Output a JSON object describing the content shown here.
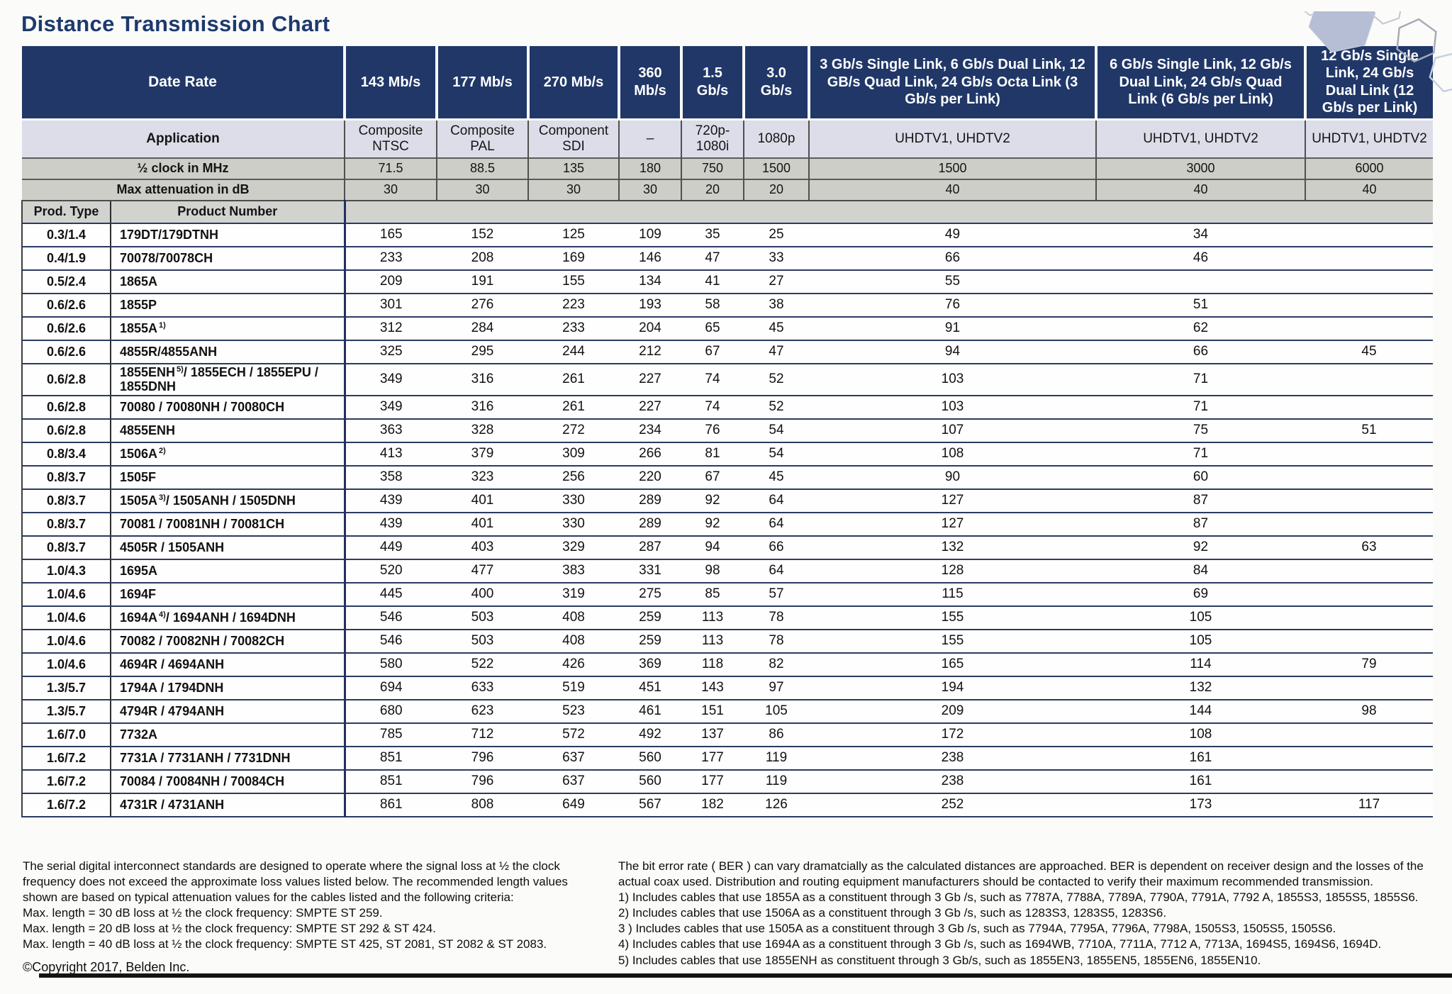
{
  "title": "Distance Transmission Chart",
  "colors": {
    "header_navy": "#203768",
    "application_row_bg": "#dcdde8",
    "gray_row_bg": "#cdcec8",
    "prod_header_row_bg": "#d2d3cf",
    "row_divider_navy": "#2b3a63",
    "title_text": "#1d3a6e"
  },
  "table": {
    "header": {
      "date_rate_label": "Date Rate",
      "application_label": "Application",
      "half_clock_label": "½ clock in MHz",
      "max_attenuation_label": "Max attenuation in dB",
      "prod_type_label": "Prod. Type",
      "product_number_label": "Product Number",
      "rate_columns": [
        "143 Mb/s",
        "177 Mb/s",
        "270 Mb/s",
        "360 Mb/s",
        "1.5 Gb/s",
        "3.0 Gb/s",
        "3 Gb/s Single Link, 6 Gb/s Dual Link, 12 GB/s Quad Link, 24 Gb/s Octa Link (3 Gb/s per Link)",
        "6 Gb/s Single Link, 12 Gb/s Dual Link, 24 Gb/s Quad Link (6 Gb/s per Link)",
        "12 Gb/s Single Link, 24 Gb/s Dual Link (12 Gb/s per Link)"
      ],
      "applications": [
        "Composite NTSC",
        "Composite PAL",
        "Component SDI",
        "–",
        "720p-1080i",
        "1080p",
        "UHDTV1, UHDTV2",
        "UHDTV1, UHDTV2",
        "UHDTV1, UHDTV2"
      ],
      "half_clock_values": [
        "71.5",
        "88.5",
        "135",
        "180",
        "750",
        "1500",
        "1500",
        "3000",
        "6000"
      ],
      "max_attenuation_values": [
        "30",
        "30",
        "30",
        "30",
        "20",
        "20",
        "40",
        "40",
        "40"
      ]
    },
    "rows": [
      {
        "prod_type": "0.3/1.4",
        "product": "179DT/179DTNH",
        "sup": "",
        "product_after": "",
        "values": [
          "165",
          "152",
          "125",
          "109",
          "35",
          "25",
          "49",
          "34",
          ""
        ]
      },
      {
        "prod_type": "0.4/1.9",
        "product": "70078/70078CH",
        "sup": "",
        "product_after": "",
        "values": [
          "233",
          "208",
          "169",
          "146",
          "47",
          "33",
          "66",
          "46",
          ""
        ]
      },
      {
        "prod_type": "0.5/2.4",
        "product": "1865A",
        "sup": "",
        "product_after": "",
        "values": [
          "209",
          "191",
          "155",
          "134",
          "41",
          "27",
          "55",
          "",
          ""
        ]
      },
      {
        "prod_type": "0.6/2.6",
        "product": "1855P",
        "sup": "",
        "product_after": "",
        "values": [
          "301",
          "276",
          "223",
          "193",
          "58",
          "38",
          "76",
          "51",
          ""
        ]
      },
      {
        "prod_type": "0.6/2.6",
        "product": "1855A",
        "sup": "1)",
        "product_after": "",
        "values": [
          "312",
          "284",
          "233",
          "204",
          "65",
          "45",
          "91",
          "62",
          ""
        ]
      },
      {
        "prod_type": "0.6/2.6",
        "product": "4855R/4855ANH",
        "sup": "",
        "product_after": "",
        "values": [
          "325",
          "295",
          "244",
          "212",
          "67",
          "47",
          "94",
          "66",
          "45"
        ]
      },
      {
        "prod_type": "0.6/2.8",
        "product": "1855ENH",
        "sup": "5)",
        "product_after": "/ 1855ECH / 1855EPU / 1855DNH",
        "values": [
          "349",
          "316",
          "261",
          "227",
          "74",
          "52",
          "103",
          "71",
          ""
        ]
      },
      {
        "prod_type": "0.6/2.8",
        "product": "70080 / 70080NH / 70080CH",
        "sup": "",
        "product_after": "",
        "values": [
          "349",
          "316",
          "261",
          "227",
          "74",
          "52",
          "103",
          "71",
          ""
        ]
      },
      {
        "prod_type": "0.6/2.8",
        "product": "4855ENH",
        "sup": "",
        "product_after": "",
        "values": [
          "363",
          "328",
          "272",
          "234",
          "76",
          "54",
          "107",
          "75",
          "51"
        ]
      },
      {
        "prod_type": "0.8/3.4",
        "product": "1506A",
        "sup": "2)",
        "product_after": "",
        "values": [
          "413",
          "379",
          "309",
          "266",
          "81",
          "54",
          "108",
          "71",
          ""
        ]
      },
      {
        "prod_type": "0.8/3.7",
        "product": "1505F",
        "sup": "",
        "product_after": "",
        "values": [
          "358",
          "323",
          "256",
          "220",
          "67",
          "45",
          "90",
          "60",
          ""
        ]
      },
      {
        "prod_type": "0.8/3.7",
        "product": "1505A",
        "sup": "3)",
        "product_after": "/ 1505ANH / 1505DNH",
        "values": [
          "439",
          "401",
          "330",
          "289",
          "92",
          "64",
          "127",
          "87",
          ""
        ]
      },
      {
        "prod_type": "0.8/3.7",
        "product": "70081 / 70081NH / 70081CH",
        "sup": "",
        "product_after": "",
        "values": [
          "439",
          "401",
          "330",
          "289",
          "92",
          "64",
          "127",
          "87",
          ""
        ]
      },
      {
        "prod_type": "0.8/3.7",
        "product": "4505R / 1505ANH",
        "sup": "",
        "product_after": "",
        "values": [
          "449",
          "403",
          "329",
          "287",
          "94",
          "66",
          "132",
          "92",
          "63"
        ]
      },
      {
        "prod_type": "1.0/4.3",
        "product": "1695A",
        "sup": "",
        "product_after": "",
        "values": [
          "520",
          "477",
          "383",
          "331",
          "98",
          "64",
          "128",
          "84",
          ""
        ]
      },
      {
        "prod_type": "1.0/4.6",
        "product": "1694F",
        "sup": "",
        "product_after": "",
        "values": [
          "445",
          "400",
          "319",
          "275",
          "85",
          "57",
          "115",
          "69",
          ""
        ]
      },
      {
        "prod_type": "1.0/4.6",
        "product": "1694A",
        "sup": "4)",
        "product_after": "/ 1694ANH / 1694DNH",
        "values": [
          "546",
          "503",
          "408",
          "259",
          "113",
          "78",
          "155",
          "105",
          ""
        ]
      },
      {
        "prod_type": "1.0/4.6",
        "product": "70082 / 70082NH / 70082CH",
        "sup": "",
        "product_after": "",
        "values": [
          "546",
          "503",
          "408",
          "259",
          "113",
          "78",
          "155",
          "105",
          ""
        ]
      },
      {
        "prod_type": "1.0/4.6",
        "product": "4694R / 4694ANH",
        "sup": "",
        "product_after": "",
        "values": [
          "580",
          "522",
          "426",
          "369",
          "118",
          "82",
          "165",
          "114",
          "79"
        ]
      },
      {
        "prod_type": "1.3/5.7",
        "product": "1794A / 1794DNH",
        "sup": "",
        "product_after": "",
        "values": [
          "694",
          "633",
          "519",
          "451",
          "143",
          "97",
          "194",
          "132",
          ""
        ]
      },
      {
        "prod_type": "1.3/5.7",
        "product": "4794R / 4794ANH",
        "sup": "",
        "product_after": "",
        "values": [
          "680",
          "623",
          "523",
          "461",
          "151",
          "105",
          "209",
          "144",
          "98"
        ]
      },
      {
        "prod_type": "1.6/7.0",
        "product": "7732A",
        "sup": "",
        "product_after": "",
        "values": [
          "785",
          "712",
          "572",
          "492",
          "137",
          "86",
          "172",
          "108",
          ""
        ]
      },
      {
        "prod_type": "1.6/7.2",
        "product": "7731A / 7731ANH / 7731DNH",
        "sup": "",
        "product_after": "",
        "values": [
          "851",
          "796",
          "637",
          "560",
          "177",
          "119",
          "238",
          "161",
          ""
        ]
      },
      {
        "prod_type": "1.6/7.2",
        "product": "70084 / 70084NH / 70084CH",
        "sup": "",
        "product_after": "",
        "values": [
          "851",
          "796",
          "637",
          "560",
          "177",
          "119",
          "238",
          "161",
          ""
        ]
      },
      {
        "prod_type": "1.6/7.2",
        "product": "4731R / 4731ANH",
        "sup": "",
        "product_after": "",
        "values": [
          "861",
          "808",
          "649",
          "567",
          "182",
          "126",
          "252",
          "173",
          "117"
        ]
      }
    ]
  },
  "footer": {
    "left": {
      "paragraph": "The serial digital interconnect standards are designed to operate where the signal loss at ½ the clock frequency does not exceed the approximate loss values listed below. The recommended length values shown are based on typical attenuation values for the cables listed and the following criteria:",
      "criteria": [
        "Max. length = 30 dB loss at ½ the clock frequency: SMPTE ST 259.",
        "Max. length = 20 dB loss at ½ the clock frequency: SMPTE ST 292 & ST 424.",
        "Max. length = 40 dB loss at ½ the clock frequency: SMPTE ST 425, ST 2081, ST 2082 & ST 2083."
      ],
      "copyright": "©Copyright 2017, Belden Inc."
    },
    "right": {
      "paragraph": "The bit error rate ( BER ) can vary dramatcially as the calculated distances are approached. BER is dependent on receiver design and the losses of the actual coax used. Distribution and routing equipment manufacturers should be contacted to verify their maximum recommended transmission.",
      "notes": [
        "1) Includes cables that use 1855A as a constituent through 3 Gb /s, such as 7787A, 7788A, 7789A, 7790A, 7791A, 7792 A, 1855S3, 1855S5, 1855S6.",
        "2) Includes cables that use 1506A as a constituent through 3 Gb /s, such as 1283S3, 1283S5, 1283S6.",
        "3 ) Includes cables that use 1505A as a constituent through 3 Gb /s, such as 7794A, 7795A, 7796A, 7798A, 1505S3, 1505S5, 1505S6.",
        "4) Includes cables that use 1694A as a constituent through 3 Gb /s, such as 1694WB, 7710A, 7711A, 7712 A, 7713A, 1694S5, 1694S6, 1694D.",
        "5) Includes cables that use 1855ENH as constituent through 3 Gb/s, such as 1855EN3, 1855EN5, 1855EN6, 1855EN10."
      ]
    }
  }
}
